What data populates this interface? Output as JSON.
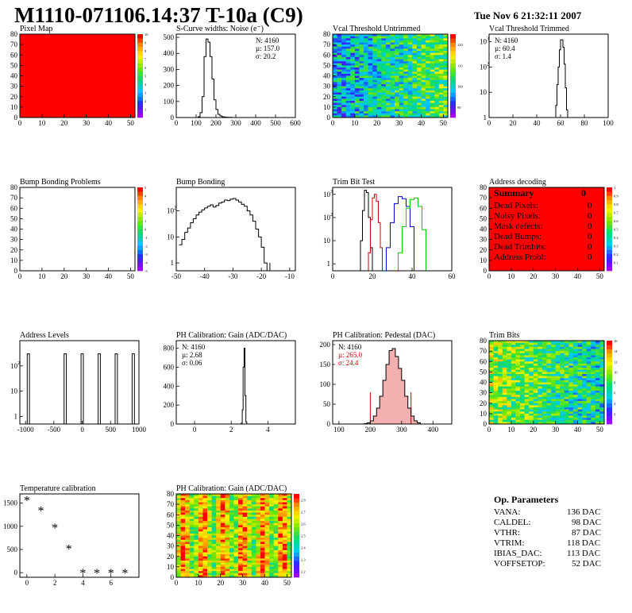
{
  "header": {
    "title": "M1110-071106.14:37 T-10a (C9)",
    "date": "Tue Nov  6 21:32:11 2007"
  },
  "summary": {
    "title": "Summary",
    "total": "0",
    "rows": [
      {
        "label": "Dead Pixels:",
        "value": "0"
      },
      {
        "label": "Noisy Pixels:",
        "value": "0"
      },
      {
        "label": "Mask defects:",
        "value": "0"
      },
      {
        "label": "Dead Bumps:",
        "value": "0"
      },
      {
        "label": "Dead Trimbits:",
        "value": "0"
      },
      {
        "label": "Address Probl:",
        "value": "0"
      }
    ]
  },
  "op_parameters": {
    "title": "Op. Parameters",
    "rows": [
      {
        "label": "VANA:",
        "value": "136 DAC"
      },
      {
        "label": "CALDEL:",
        "value": "98 DAC"
      },
      {
        "label": "VTHR:",
        "value": "87 DAC"
      },
      {
        "label": "VTRIM:",
        "value": "118 DAC"
      },
      {
        "label": "IBIAS_DAC:",
        "value": "113 DAC"
      },
      {
        "label": "VOFFSETOP:",
        "value": "52 DAC"
      }
    ]
  },
  "chart_data": [
    {
      "id": "pixel-map",
      "type": "heatmap",
      "title": "Pixel Map",
      "xlim": [
        0,
        52
      ],
      "ylim": [
        0,
        80
      ],
      "xticks": [
        0,
        10,
        20,
        30,
        40,
        50
      ],
      "yticks": [
        0,
        10,
        20,
        30,
        40,
        50,
        60,
        70,
        80
      ],
      "fill": "uniform",
      "fill_color": "#ff0000",
      "colorbar": {
        "ticks": [
          "1",
          "2",
          "3",
          "4",
          "5",
          "6",
          "7",
          "8",
          "9",
          "10"
        ],
        "range": [
          0,
          10
        ]
      }
    },
    {
      "id": "scurve-widths",
      "type": "line",
      "title": "S-Curve widths: Noise (e⁻)",
      "xlim": [
        0,
        600
      ],
      "ylim": [
        0,
        520
      ],
      "xticks": [
        0,
        100,
        200,
        300,
        400,
        500,
        600
      ],
      "yticks": [
        0,
        100,
        200,
        300,
        400,
        500
      ],
      "stats": [
        "N: 4160",
        "µ: 157.0",
        "σ: 20.2"
      ],
      "x": [
        100,
        110,
        120,
        130,
        140,
        150,
        160,
        170,
        180,
        190,
        200,
        210,
        220,
        230,
        240,
        250,
        260,
        270,
        280
      ],
      "y": [
        0,
        5,
        30,
        130,
        380,
        490,
        470,
        380,
        240,
        110,
        50,
        20,
        10,
        5,
        3,
        2,
        1,
        1,
        0
      ]
    },
    {
      "id": "vcal-untrimmed",
      "type": "heatmap",
      "title": "Vcal Threshold Untrimmed",
      "xlim": [
        0,
        52
      ],
      "ylim": [
        0,
        80
      ],
      "xticks": [
        0,
        10,
        20,
        30,
        40,
        50
      ],
      "yticks": [
        0,
        10,
        20,
        30,
        40,
        50,
        60,
        70,
        80
      ],
      "fill": "noise",
      "trend": "increasing-with-x",
      "colorbar": {
        "ticks": [
          "90",
          "100",
          "110",
          "120"
        ],
        "range": [
          85,
          125
        ]
      }
    },
    {
      "id": "vcal-trimmed",
      "type": "line",
      "title": "Vcal Threshold Trimmed",
      "yscale": "log",
      "xlim": [
        0,
        100
      ],
      "ylim": [
        1,
        2000
      ],
      "xticks": [
        0,
        20,
        40,
        60,
        80,
        100
      ],
      "yticks": [
        1,
        10,
        100,
        1000
      ],
      "stats": [
        "N: 4160",
        "µ: 60.4",
        "σ:  1.4"
      ],
      "x": [
        55,
        56,
        57,
        58,
        59,
        60,
        61,
        62,
        63,
        64,
        65,
        66
      ],
      "y": [
        0,
        3,
        20,
        100,
        480,
        1200,
        1200,
        600,
        130,
        15,
        2,
        0
      ]
    },
    {
      "id": "bump-bonding-problems",
      "type": "heatmap",
      "title": "Bump Bonding Problems",
      "xlim": [
        0,
        52
      ],
      "ylim": [
        0,
        80
      ],
      "xticks": [
        0,
        10,
        20,
        30,
        40,
        50
      ],
      "yticks": [
        0,
        10,
        20,
        30,
        40,
        50,
        60,
        70,
        80
      ],
      "fill": "empty",
      "colorbar": {
        "ticks": [
          "-5",
          "-4",
          "-3",
          "-2",
          "-1",
          "0",
          "1",
          "2",
          "3",
          "4",
          "5"
        ],
        "range": [
          -5,
          5
        ]
      }
    },
    {
      "id": "bump-bonding",
      "type": "line",
      "title": "Bump Bonding",
      "yscale": "log",
      "xlim": [
        -50,
        -8
      ],
      "ylim": [
        0.5,
        800
      ],
      "xticks": [
        -50,
        -40,
        -30,
        -20,
        -10
      ],
      "yticks": [
        1,
        10,
        100
      ],
      "x": [
        -49,
        -48,
        -47,
        -46,
        -45,
        -44,
        -43,
        -42,
        -41,
        -40,
        -39,
        -38,
        -37,
        -36,
        -35,
        -34,
        -33,
        -32,
        -31,
        -30,
        -29,
        -28,
        -27,
        -26,
        -25,
        -24,
        -23,
        -22,
        -21,
        -20,
        -19,
        -18,
        -17
      ],
      "y": [
        5,
        8,
        15,
        22,
        35,
        50,
        70,
        90,
        110,
        130,
        150,
        170,
        140,
        160,
        200,
        220,
        260,
        250,
        280,
        300,
        260,
        220,
        180,
        150,
        100,
        70,
        40,
        20,
        10,
        4,
        1,
        0,
        1
      ]
    },
    {
      "id": "trim-bit-test",
      "type": "line",
      "title": "Trim Bit Test",
      "yscale": "log",
      "xlim": [
        0,
        60
      ],
      "ylim": [
        0.5,
        2000
      ],
      "xticks": [
        0,
        20,
        40,
        60
      ],
      "yticks": [
        1,
        10,
        100,
        1000
      ],
      "series": [
        {
          "color": "#000000",
          "x": [
            13,
            14,
            15,
            16,
            17,
            18,
            19,
            20
          ],
          "y": [
            0,
            10,
            200,
            1500,
            1200,
            100,
            5,
            0
          ]
        },
        {
          "color": "#cc0000",
          "x": [
            17,
            18,
            19,
            20,
            21,
            22,
            23,
            24,
            25
          ],
          "y": [
            0,
            3,
            80,
            700,
            1000,
            500,
            60,
            5,
            0
          ]
        },
        {
          "color": "#0000cc",
          "x": [
            25,
            27,
            29,
            31,
            33,
            35,
            37,
            39,
            41
          ],
          "y": [
            0,
            5,
            60,
            400,
            800,
            650,
            300,
            40,
            0
          ]
        },
        {
          "color": "#00cc00",
          "x": [
            31,
            33,
            35,
            37,
            39,
            41,
            43,
            45,
            47
          ],
          "y": [
            0,
            3,
            40,
            250,
            600,
            700,
            300,
            30,
            0
          ]
        }
      ]
    },
    {
      "id": "address-decoding",
      "type": "heatmap",
      "title": "Address decoding",
      "xlim": [
        0,
        52
      ],
      "ylim": [
        0,
        80
      ],
      "xticks": [
        0,
        10,
        20,
        30,
        40,
        50
      ],
      "yticks": [
        0,
        10,
        20,
        30,
        40,
        50,
        60,
        70,
        80
      ],
      "fill": "uniform",
      "fill_color": "#ff0000",
      "colorbar": {
        "ticks": [
          "0.1",
          "0.2",
          "0.3",
          "0.4",
          "0.5",
          "0.6",
          "0.7",
          "0.8",
          "0.9",
          "1"
        ],
        "range": [
          0,
          1
        ]
      }
    },
    {
      "id": "address-levels",
      "type": "line",
      "title": "Address Levels",
      "yscale": "log",
      "xlim": [
        -1100,
        1000
      ],
      "ylim": [
        0.5,
        1000
      ],
      "xticks": [
        -1000,
        -500,
        0,
        500,
        1000
      ],
      "yticks": [
        1,
        10,
        100
      ],
      "peaks": [
        -950,
        -300,
        0,
        300,
        600,
        900
      ],
      "peak_height": 300
    },
    {
      "id": "ph-gain",
      "type": "line",
      "title": "PH Calibration: Gain (ADC/DAC)",
      "xlim": [
        -1,
        5.5
      ],
      "ylim": [
        0,
        880
      ],
      "xticks": [
        0,
        2,
        4
      ],
      "yticks": [
        0,
        200,
        400,
        600,
        800
      ],
      "stats": [
        "N: 4160",
        "µ: 2.68",
        "σ: 0.06"
      ],
      "x": [
        2.5,
        2.55,
        2.6,
        2.65,
        2.7,
        2.75,
        2.8,
        2.85
      ],
      "y": [
        0,
        10,
        150,
        600,
        800,
        300,
        20,
        0
      ]
    },
    {
      "id": "ph-pedestal",
      "type": "line",
      "title": "PH Calibration: Pedestal (DAC)",
      "xlim": [
        80,
        460
      ],
      "ylim": [
        0,
        210
      ],
      "xticks": [
        100,
        200,
        300,
        400
      ],
      "yticks": [
        0,
        50,
        100,
        150,
        200
      ],
      "stats": [
        "N: 4160",
        "µ: 265.0",
        "σ: 24.4"
      ],
      "x": [
        180,
        190,
        200,
        210,
        220,
        230,
        240,
        250,
        260,
        270,
        280,
        290,
        300,
        310,
        320,
        330,
        340,
        350,
        360
      ],
      "y": [
        1,
        3,
        8,
        20,
        40,
        70,
        110,
        150,
        185,
        190,
        170,
        140,
        110,
        70,
        40,
        20,
        8,
        3,
        1
      ],
      "markers": [
        200,
        330
      ]
    },
    {
      "id": "trim-bits",
      "type": "heatmap",
      "title": "Trim Bits",
      "xlim": [
        0,
        52
      ],
      "ylim": [
        0,
        80
      ],
      "xticks": [
        0,
        10,
        20,
        30,
        40,
        50
      ],
      "yticks": [
        0,
        10,
        20,
        30,
        40,
        50,
        60,
        70,
        80
      ],
      "fill": "noise",
      "trend": "decreasing-with-x",
      "colorbar": {
        "ticks": [
          "2",
          "4",
          "6",
          "8",
          "10",
          "12",
          "14",
          "16"
        ],
        "range": [
          0,
          16
        ]
      }
    },
    {
      "id": "temperature-calibration",
      "type": "scatter",
      "title": "Temperature calibration",
      "xlim": [
        -0.5,
        8
      ],
      "ylim": [
        -100,
        1700
      ],
      "xticks": [
        0,
        2,
        4,
        6
      ],
      "yticks": [
        0,
        500,
        1000,
        1500
      ],
      "x": [
        0,
        1,
        2,
        3,
        4,
        5,
        6,
        7
      ],
      "y": [
        1570,
        1350,
        980,
        530,
        0,
        0,
        0,
        0
      ]
    },
    {
      "id": "ph-gain-map",
      "type": "heatmap",
      "title": "PH Calibration: Gain (ADC/DAC)",
      "xlim": [
        0,
        52
      ],
      "ylim": [
        0,
        80
      ],
      "xticks": [
        0,
        10,
        20,
        30,
        40,
        50
      ],
      "yticks": [
        0,
        10,
        20,
        30,
        40,
        50,
        60,
        70,
        80
      ],
      "fill": "stripes",
      "colorbar": {
        "ticks": [
          "2.2",
          "2.3",
          "2.4",
          "2.5",
          "2.6",
          "2.7",
          "2.8"
        ],
        "range": [
          2.15,
          2.85
        ]
      }
    }
  ]
}
